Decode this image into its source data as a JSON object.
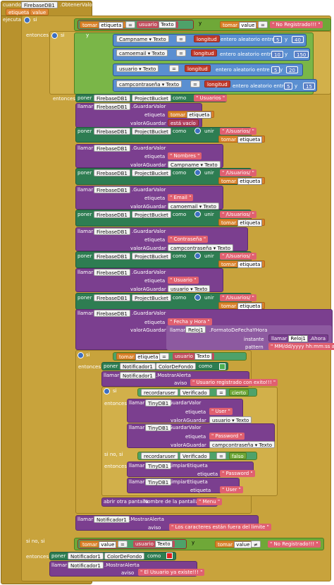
{
  "event": {
    "cuando": "cuando",
    "component": "FirebaseDB1",
    "event_name": ".ObtenerValor",
    "params": [
      "etiqueta",
      "value"
    ],
    "ejecutar": "ejecutar"
  },
  "kw": {
    "si": "si",
    "entonces": "entonces",
    "sino": "sino",
    "si_no_si": "si no, si",
    "y": "y",
    "tomar": "tomar",
    "poner": "poner",
    "llamar": "llamar",
    "como": "como",
    "unir": "unir",
    "longitud": "longitud",
    "entero_aleatorio": "entero aleatorio entre",
    "y_op": "y",
    "etiqueta": "etiqueta",
    "valorAGuardar": "valorAGuardar",
    "aviso": "aviso",
    "instante": "instante",
    "pattern": "pattern",
    "abrir": "abrir otra pantalla",
    "nombre_pantalla": "Nombre de la pantalla",
    "ahora": ".Ahora",
    "formato": ".FormatoDeFechaYHora",
    "guardar": ".GuardarValor",
    "limpiar": ".LimpiarEtiqueta",
    "mostrar": ".MostrarAlerta",
    "bucket": "ProjectBucket",
    "color": "ColorDeFondo"
  },
  "vars": {
    "etiqueta": "etiqueta",
    "value": "value"
  },
  "ops": {
    "eq": "=",
    "neq": "≠"
  },
  "strings": {
    "usuario": "usuario",
    "texto": "Texto",
    "no_registrado": "\" No Registrado!!! \"",
    "usuarios": "\" Usuarios \"",
    "esta_vacio": "está vacío",
    "usuarios_slash": "\" /Usuarios/ \"",
    "nombres": "\" Nombres \"",
    "email": "\" Email \"",
    "contrasena": "\" Contraseña \"",
    "usuario_s": "\" Usuario \"",
    "fecha_hora": "\" Fecha y Hora \"",
    "pattern_val": "\" MM/dd/yyyy hh:mm:ss a \"",
    "registrado": "\" Usuario registrado con exito!!! \"",
    "cierto": "cierto",
    "falso": "falso",
    "user": "\" User \"",
    "password": "\" Password \"",
    "menu": "\" Menu \"",
    "limite": "\" Los caracteres están fuera del limite \"",
    "existe": "\" El Usuario ya existe!!! \""
  },
  "nums": {
    "n5": "5",
    "n40": "40",
    "n10": "10",
    "n150": "150",
    "n20": "20",
    "n15": "15"
  },
  "fields": {
    "campname": "Campname",
    "camoemail": "camoemail",
    "usuario": "usuario",
    "campcontrasena": "campcontraseña",
    "recordaruser": "recordaruser",
    "verificado": "Verificado",
    "notificador": "Notificador1",
    "tinydb": "TinyDB1",
    "reloj": "Reloj1",
    "fb": "FirebaseDB1"
  },
  "colors": {
    "event": "#b8922d",
    "control": "#c8a33c",
    "logic": "#6fa838",
    "text": "#e06070",
    "math": "#3f6fb5",
    "component": "#7b3f8f",
    "setter": "#2e7d52",
    "getter": "#d9822b",
    "color_green": "#4caf50",
    "color_red": "#e02020"
  }
}
